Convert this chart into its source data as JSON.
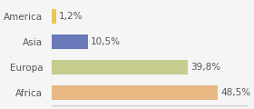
{
  "categories": [
    "America",
    "Asia",
    "Europa",
    "Africa"
  ],
  "values": [
    1.2,
    10.5,
    39.8,
    48.5
  ],
  "colors": [
    "#e8c850",
    "#6878b8",
    "#c5cc8e",
    "#e8b882"
  ],
  "labels": [
    "1,2%",
    "10,5%",
    "39,8%",
    "48,5%"
  ],
  "background_color": "#f5f5f5",
  "xlim": [
    0,
    57
  ],
  "bar_height": 0.55
}
